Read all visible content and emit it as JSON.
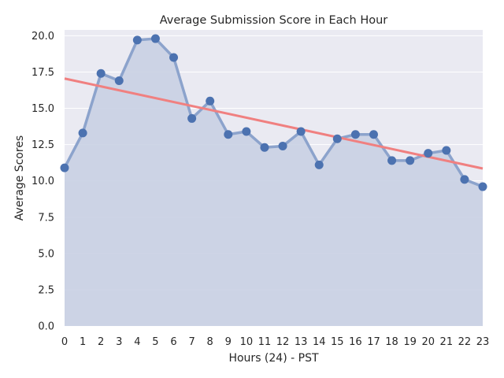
{
  "chart_data": {
    "type": "line",
    "title": "Average Submission Score in Each Hour",
    "xlabel": "Hours (24) - PST",
    "ylabel": "Average Scores",
    "x": [
      0,
      1,
      2,
      3,
      4,
      5,
      6,
      7,
      8,
      9,
      10,
      11,
      12,
      13,
      14,
      15,
      16,
      17,
      18,
      19,
      20,
      21,
      22,
      23
    ],
    "x_tick_labels": [
      "0",
      "1",
      "2",
      "3",
      "4",
      "5",
      "6",
      "7",
      "8",
      "9",
      "10",
      "11",
      "12",
      "13",
      "14",
      "15",
      "16",
      "17",
      "18",
      "19",
      "20",
      "21",
      "22",
      "23"
    ],
    "y_tick_values": [
      0,
      2.5,
      5,
      7.5,
      10,
      12.5,
      15,
      17.5,
      20
    ],
    "y_tick_labels": [
      "0.0",
      "2.5",
      "5.0",
      "7.5",
      "10.0",
      "12.5",
      "15.0",
      "17.5",
      "20.0"
    ],
    "xlim": [
      0,
      23
    ],
    "ylim": [
      0,
      20.4
    ],
    "grid": true,
    "series": [
      {
        "values": [
          10.9,
          13.3,
          17.4,
          16.9,
          19.7,
          19.8,
          18.5,
          14.3,
          15.5,
          13.2,
          13.4,
          12.3,
          12.4,
          13.4,
          11.1,
          12.9,
          13.2,
          13.2,
          11.4,
          11.4,
          11.9,
          12.1,
          10.1,
          9.6
        ],
        "color": "#4c72b0",
        "line_color": "#8ca3cc",
        "fill_color": "#c9d0e3"
      },
      {
        "kind": "trend",
        "start": [
          0,
          17.05
        ],
        "end": [
          23,
          10.85
        ],
        "color": "#f08080"
      }
    ]
  },
  "colors": {
    "plot_background": "#eaeaf2",
    "gridline": "#ffffff"
  }
}
